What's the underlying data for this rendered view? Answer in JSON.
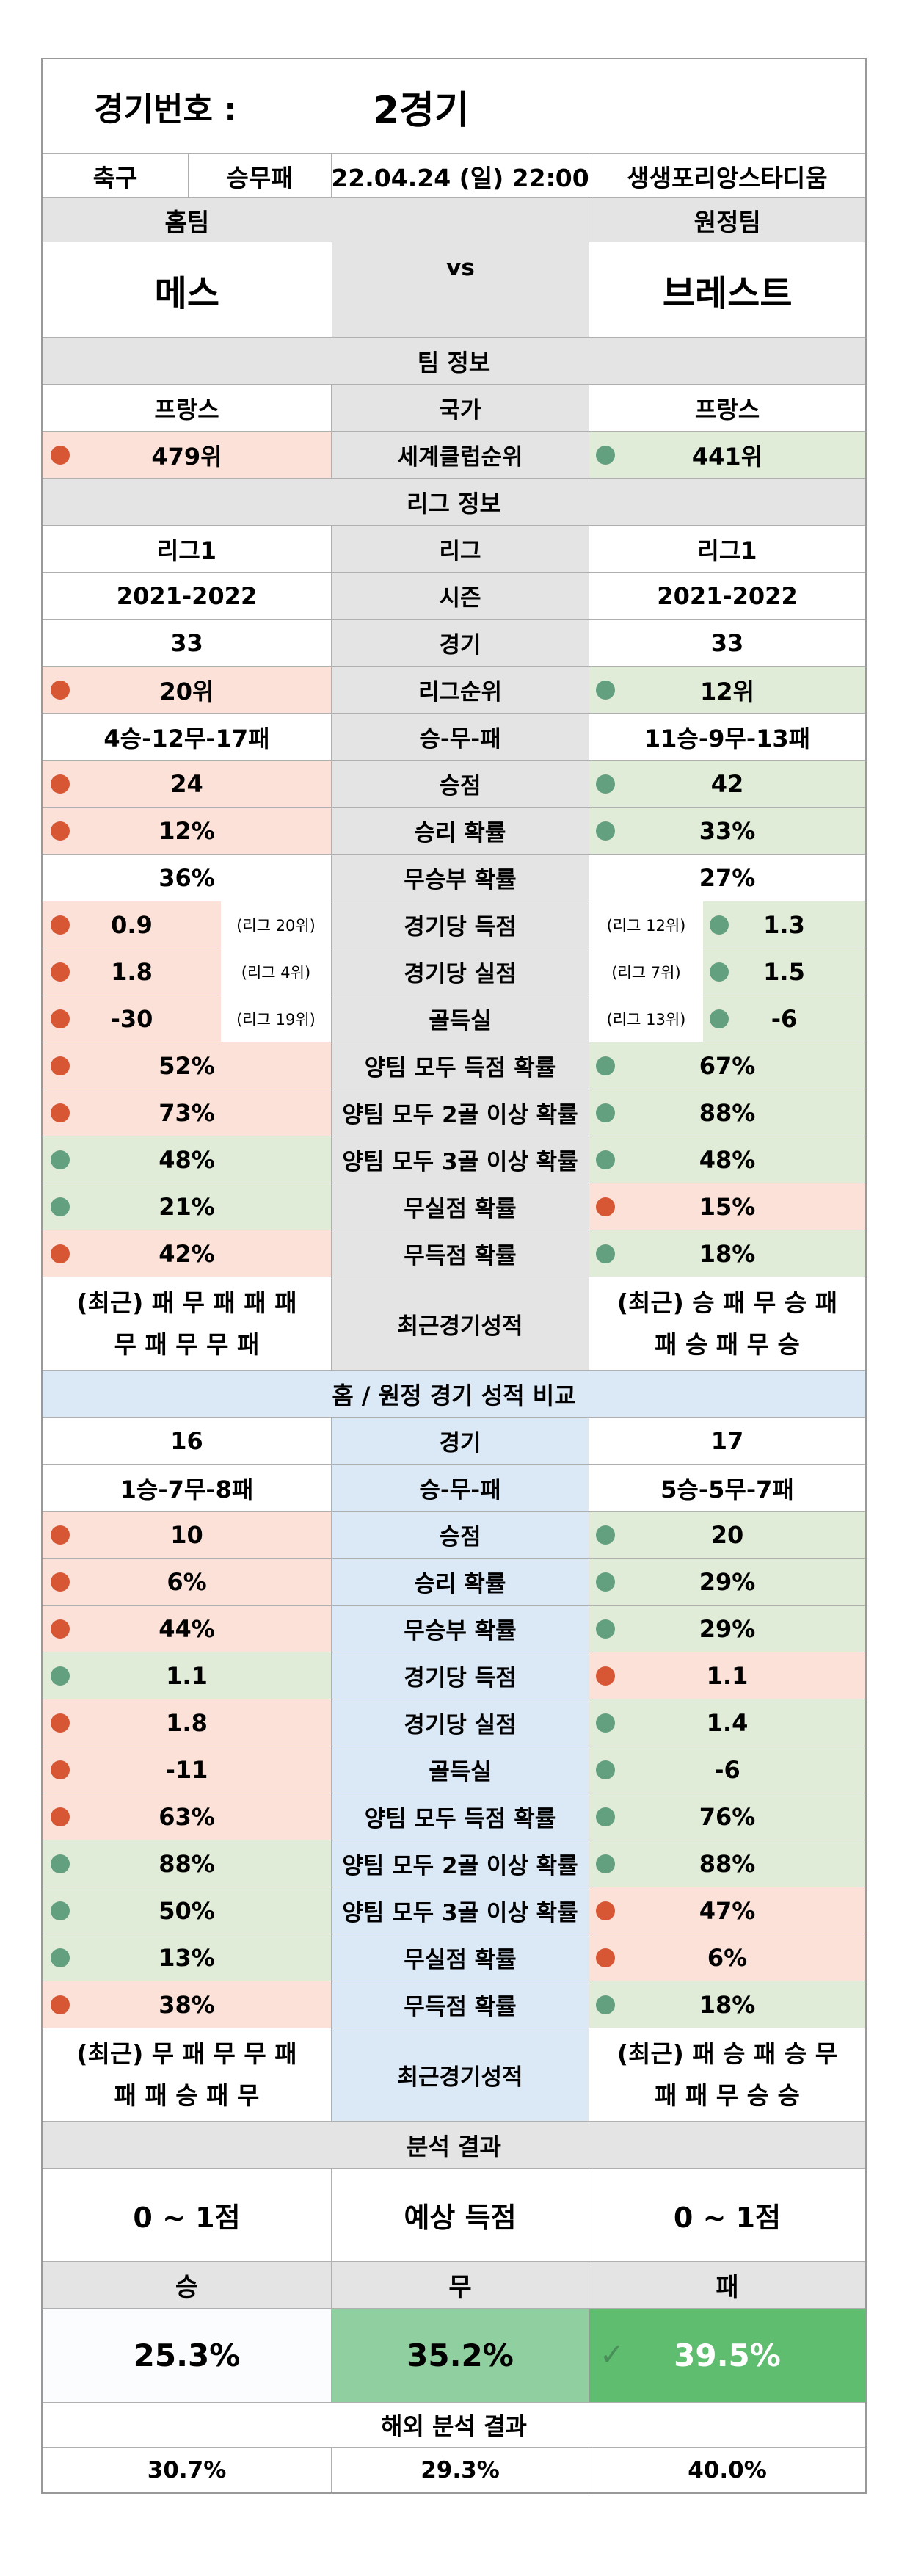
{
  "header": {
    "match_no_label": "경기번호 :",
    "match_no": "2경기",
    "sport": "축구",
    "bet_type": "승무패",
    "datetime": "22.04.24 (일) 22:00",
    "venue": "생생포리앙스타디움",
    "home_label": "홈팀",
    "away_label": "원정팀",
    "home_team": "메스",
    "vs": "vs",
    "away_team": "브레스트"
  },
  "colors": {
    "home_bad": "#fbe1d7",
    "good": "#e0ecd8",
    "red_dot": "#d75734",
    "green_dot": "#62a07f",
    "compare_header": "#dbe9f6",
    "draw_pct": "#90cf9f",
    "lose_pct": "#5ebd6e"
  },
  "team_info": {
    "title": "팀 정보",
    "rows": [
      {
        "label": "국가",
        "home": "프랑스",
        "away": "프랑스"
      },
      {
        "label": "세계클럽순위",
        "home": "479위",
        "away": "441위"
      }
    ]
  },
  "league_info": {
    "title": "리그 정보",
    "rows": [
      {
        "label": "리그",
        "home": "리그1",
        "away": "리그1"
      },
      {
        "label": "시즌",
        "home": "2021-2022",
        "away": "2021-2022"
      },
      {
        "label": "경기",
        "home": "33",
        "away": "33"
      },
      {
        "label": "리그순위",
        "home": "20위",
        "away": "12위"
      },
      {
        "label": "승-무-패",
        "home": "4승-12무-17패",
        "away": "11승-9무-13패"
      },
      {
        "label": "승점",
        "home": "24",
        "away": "42"
      },
      {
        "label": "승리 확률",
        "home": "12%",
        "away": "33%"
      },
      {
        "label": "무승부 확률",
        "home": "36%",
        "away": "27%"
      },
      {
        "label": "경기당 득점",
        "home": "0.9",
        "home_rank": "(리그 20위)",
        "away": "1.3",
        "away_rank": "(리그 12위)"
      },
      {
        "label": "경기당 실점",
        "home": "1.8",
        "home_rank": "(리그 4위)",
        "away": "1.5",
        "away_rank": "(리그 7위)"
      },
      {
        "label": "골득실",
        "home": "-30",
        "home_rank": "(리그 19위)",
        "away": "-6",
        "away_rank": "(리그 13위)"
      },
      {
        "label": "양팀 모두 득점 확률",
        "home": "52%",
        "away": "67%"
      },
      {
        "label": "양팀 모두 2골 이상 확률",
        "home": "73%",
        "away": "88%"
      },
      {
        "label": "양팀 모두 3골 이상 확률",
        "home": "48%",
        "away": "48%"
      },
      {
        "label": "무실점 확률",
        "home": "21%",
        "away": "15%"
      },
      {
        "label": "무득점 확률",
        "home": "42%",
        "away": "18%"
      },
      {
        "label": "최근경기성적",
        "home_l1": "(최근) 패 무 패 패 패",
        "home_l2": "무 패 무 무 패",
        "away_l1": "(최근) 승 패 무 승 패",
        "away_l2": "패 승 패 무 승"
      }
    ]
  },
  "compare": {
    "title": "홈 / 원정 경기 성적 비교",
    "rows": [
      {
        "label": "경기",
        "home": "16",
        "away": "17"
      },
      {
        "label": "승-무-패",
        "home": "1승-7무-8패",
        "away": "5승-5무-7패"
      },
      {
        "label": "승점",
        "home": "10",
        "away": "20"
      },
      {
        "label": "승리 확률",
        "home": "6%",
        "away": "29%"
      },
      {
        "label": "무승부 확률",
        "home": "44%",
        "away": "29%"
      },
      {
        "label": "경기당 득점",
        "home": "1.1",
        "away": "1.1"
      },
      {
        "label": "경기당 실점",
        "home": "1.8",
        "away": "1.4"
      },
      {
        "label": "골득실",
        "home": "-11",
        "away": "-6"
      },
      {
        "label": "양팀 모두 득점 확률",
        "home": "63%",
        "away": "76%"
      },
      {
        "label": "양팀 모두 2골 이상 확률",
        "home": "88%",
        "away": "88%"
      },
      {
        "label": "양팀 모두 3골 이상 확률",
        "home": "50%",
        "away": "47%"
      },
      {
        "label": "무실점 확률",
        "home": "13%",
        "away": "6%"
      },
      {
        "label": "무득점 확률",
        "home": "38%",
        "away": "18%"
      },
      {
        "label": "최근경기성적",
        "home_l1": "(최근) 무 패 무 무 패",
        "home_l2": "패 패 승 패 무",
        "away_l1": "(최근) 패 승 패 승 무",
        "away_l2": "패 패 무 승 승"
      }
    ]
  },
  "analysis": {
    "title": "분석 결과",
    "expected_label": "예상 득점",
    "home_expected": "0 ~ 1점",
    "away_expected": "0 ~ 1점",
    "win_label": "승",
    "draw_label": "무",
    "lose_label": "패",
    "win_pct": "25.3%",
    "draw_pct": "35.2%",
    "lose_pct": "39.5%",
    "check_icon": "✓",
    "overseas_title": "해외 분석 결과",
    "overseas_win": "30.7%",
    "overseas_draw": "29.3%",
    "overseas_lose": "40.0%"
  }
}
